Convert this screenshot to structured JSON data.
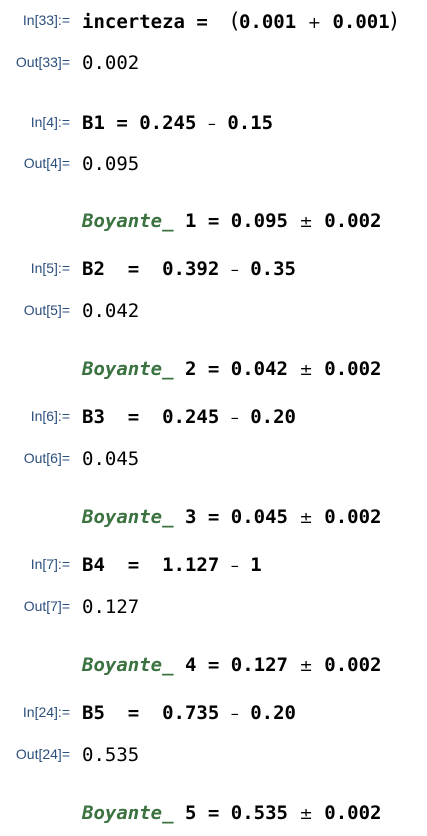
{
  "cells": [
    {
      "in_label": "In[33]:=",
      "input": {
        "lhs": "incerteza",
        "eq": " = ",
        "open": "(",
        "a": "0.001",
        "op": "+",
        "b": "0.001",
        "close": ")"
      },
      "out_label": "Out[33]=",
      "output": "0.002"
    },
    {
      "in_label": "In[4]:=",
      "input": {
        "lhs": "B1",
        "eq": " = ",
        "a": "0.245",
        "op": "–",
        "b": "0.15"
      },
      "out_label": "Out[4]=",
      "output": "0.095",
      "result": {
        "symbol": "Boyante_",
        "index": "1",
        "eq": " = ",
        "value": "0.095",
        "pm": "±",
        "unc": "0.002"
      }
    },
    {
      "in_label": "In[5]:=",
      "input": {
        "lhs": "B2",
        "eq": "  =  ",
        "a": "0.392",
        "op": "–",
        "b": "0.35"
      },
      "out_label": "Out[5]=",
      "output": "0.042",
      "result": {
        "symbol": "Boyante_",
        "index": "2",
        "eq": " = ",
        "value": "0.042",
        "pm": "±",
        "unc": "0.002"
      }
    },
    {
      "in_label": "In[6]:=",
      "input": {
        "lhs": "B3",
        "eq": "  =  ",
        "a": "0.245",
        "op": "–",
        "b": "0.20"
      },
      "out_label": "Out[6]=",
      "output": "0.045",
      "result": {
        "symbol": "Boyante_",
        "index": "3",
        "eq": " = ",
        "value": "0.045",
        "pm": "±",
        "unc": "0.002"
      }
    },
    {
      "in_label": "In[7]:=",
      "input": {
        "lhs": "B4",
        "eq": "  =  ",
        "a": "1.127",
        "op": "–",
        "b": "1"
      },
      "out_label": "Out[7]=",
      "output": "0.127",
      "result": {
        "symbol": "Boyante_",
        "index": "4",
        "eq": " = ",
        "value": "0.127",
        "pm": "±",
        "unc": "0.002"
      }
    },
    {
      "in_label": "In[24]:=",
      "input": {
        "lhs": "B5",
        "eq": "  =  ",
        "a": "0.735",
        "op": "–",
        "b": "0.20"
      },
      "out_label": "Out[24]=",
      "output": "0.535",
      "result": {
        "symbol": "Boyante_",
        "index": "5",
        "eq": " = ",
        "value": "0.535",
        "pm": "±",
        "unc": "0.002"
      }
    }
  ],
  "colors": {
    "label": "#2b4f7c",
    "symbol": "#3a7240",
    "text": "#000000"
  }
}
